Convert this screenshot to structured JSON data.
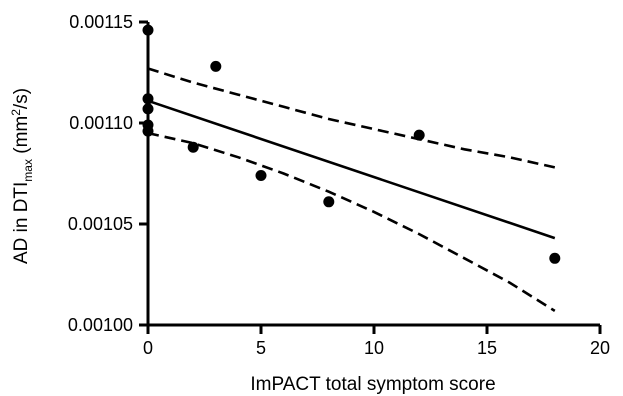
{
  "chart_data": {
    "type": "scatter",
    "xlabel": "ImPACT total symptom score",
    "ylabel": {
      "prefix": "AD in DTI",
      "subscript": "max",
      "units_open": " (mm",
      "superscript": "2",
      "units_close": "/s)"
    },
    "xlim": [
      0,
      20
    ],
    "ylim": [
      0.001,
      0.00115
    ],
    "x_ticks": [
      0,
      5,
      10,
      15,
      20
    ],
    "x_tick_labels": [
      "0",
      "5",
      "10",
      "15",
      "20"
    ],
    "y_ticks": [
      0.001,
      0.00105,
      0.0011,
      0.00115
    ],
    "y_tick_labels": [
      "0.00100",
      "0.00105",
      "0.00110",
      "0.00115"
    ],
    "grid": false,
    "points": [
      {
        "x": 0,
        "y": 0.001146
      },
      {
        "x": 0,
        "y": 0.001112
      },
      {
        "x": 0,
        "y": 0.001107
      },
      {
        "x": 0,
        "y": 0.001099
      },
      {
        "x": 0,
        "y": 0.001096
      },
      {
        "x": 2,
        "y": 0.001088
      },
      {
        "x": 3,
        "y": 0.001128
      },
      {
        "x": 5,
        "y": 0.001074
      },
      {
        "x": 8,
        "y": 0.001061
      },
      {
        "x": 12,
        "y": 0.001094
      },
      {
        "x": 18,
        "y": 0.001033
      }
    ],
    "regression_line": {
      "x": [
        0,
        18
      ],
      "y": [
        0.001111,
        0.001043
      ]
    },
    "ci_upper": {
      "x": [
        0,
        2,
        4,
        6,
        8,
        10,
        12,
        14,
        16,
        18
      ],
      "y": [
        0.001127,
        0.00112,
        0.001114,
        0.001108,
        0.001102,
        0.001097,
        0.001092,
        0.001087,
        0.001083,
        0.001078
      ]
    },
    "ci_lower": {
      "x": [
        0,
        2,
        4,
        6,
        8,
        10,
        12,
        14,
        16,
        18
      ],
      "y": [
        0.001095,
        0.00109,
        0.001083,
        0.001075,
        0.001066,
        0.001056,
        0.001045,
        0.001033,
        0.001021,
        0.001007
      ]
    }
  }
}
